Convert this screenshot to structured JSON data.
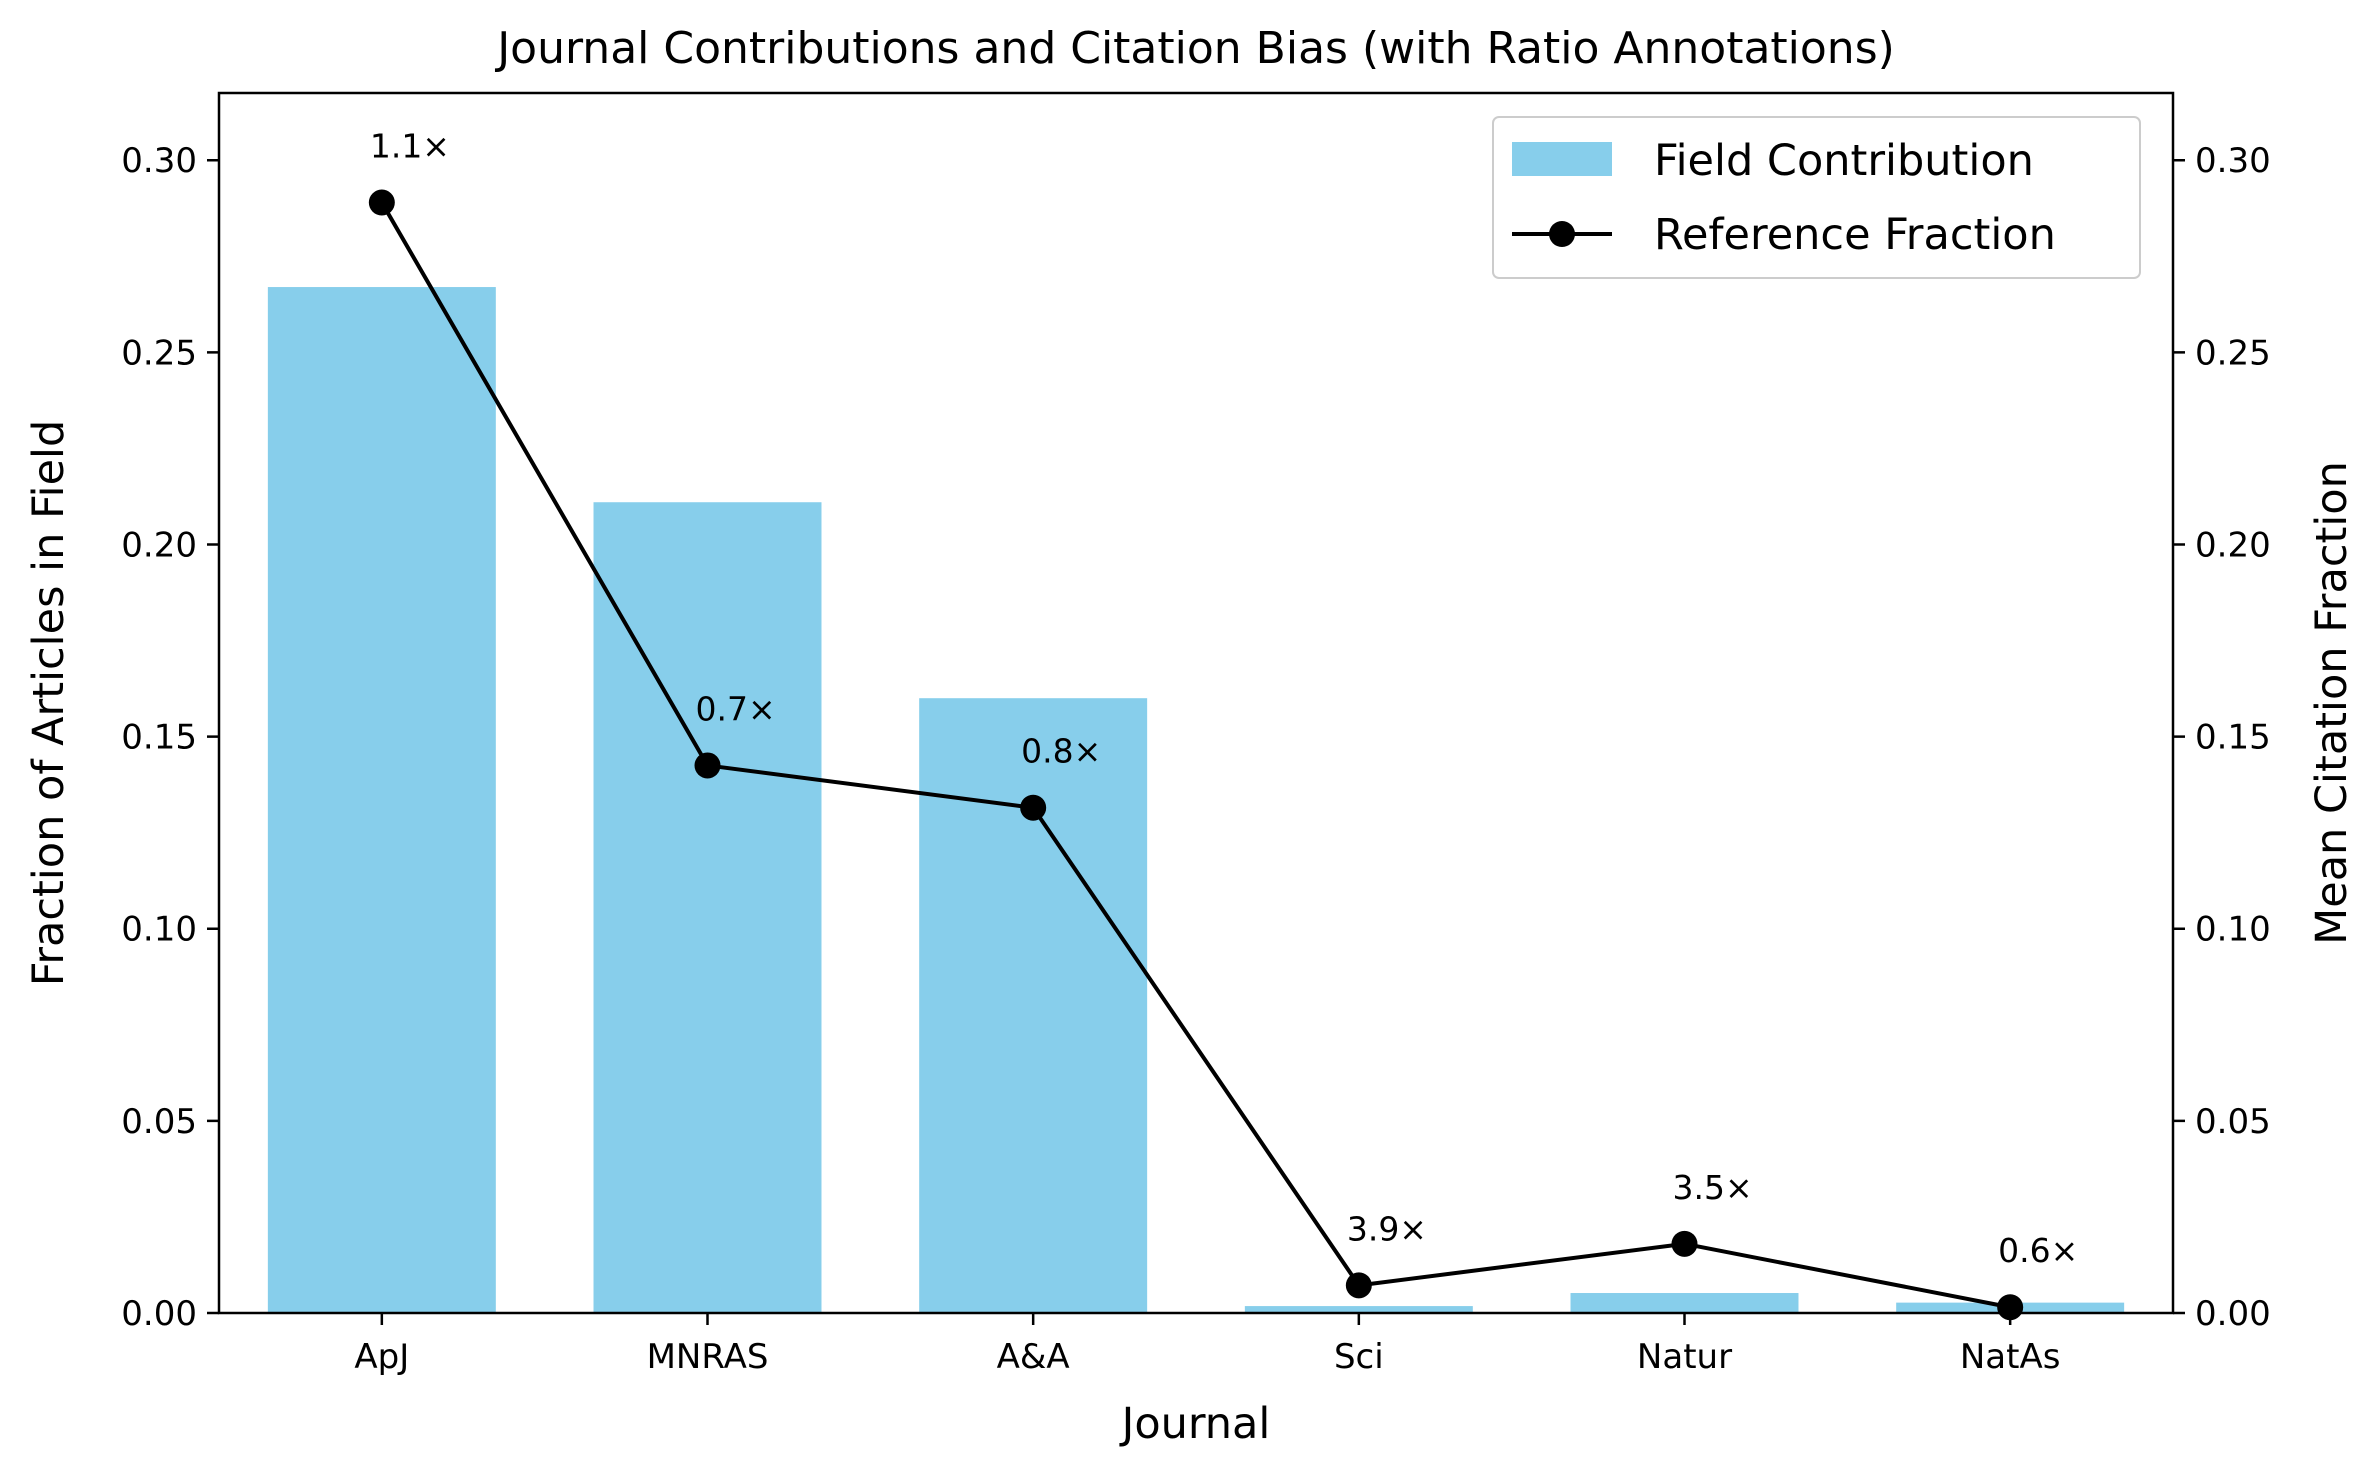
{
  "chart_data": {
    "type": "bar",
    "title": "Journal Contributions and Citation Bias (with Ratio Annotations)",
    "xlabel": "Journal",
    "ylabel": "Fraction of Articles in Field",
    "y2label": "Mean Citation Fraction",
    "categories": [
      "ApJ",
      "MNRAS",
      "A&A",
      "Sci",
      "Natur",
      "NatAs"
    ],
    "ylim": [
      0,
      0.3175
    ],
    "y2lim": [
      0,
      0.3175
    ],
    "yticks": [
      "0.00",
      "0.05",
      "0.10",
      "0.15",
      "0.20",
      "0.25",
      "0.30"
    ],
    "y2ticks": [
      "0.00",
      "0.05",
      "0.10",
      "0.15",
      "0.20",
      "0.25",
      "0.30"
    ],
    "series": [
      {
        "name": "Field Contribution",
        "type": "bar",
        "axis": "left",
        "color": "#87ceeb",
        "values": [
          0.267,
          0.211,
          0.16,
          0.0018,
          0.0052,
          0.0027
        ]
      },
      {
        "name": "Reference Fraction",
        "type": "line",
        "axis": "right",
        "color": "#000000",
        "marker": "circle",
        "values": [
          0.289,
          0.1425,
          0.1315,
          0.0072,
          0.018,
          0.0015
        ]
      }
    ],
    "annotations": [
      "1.1×",
      "0.7×",
      "0.8×",
      "3.9×",
      "3.5×",
      "0.6×"
    ],
    "legend_position": "top-right",
    "grid": false
  }
}
